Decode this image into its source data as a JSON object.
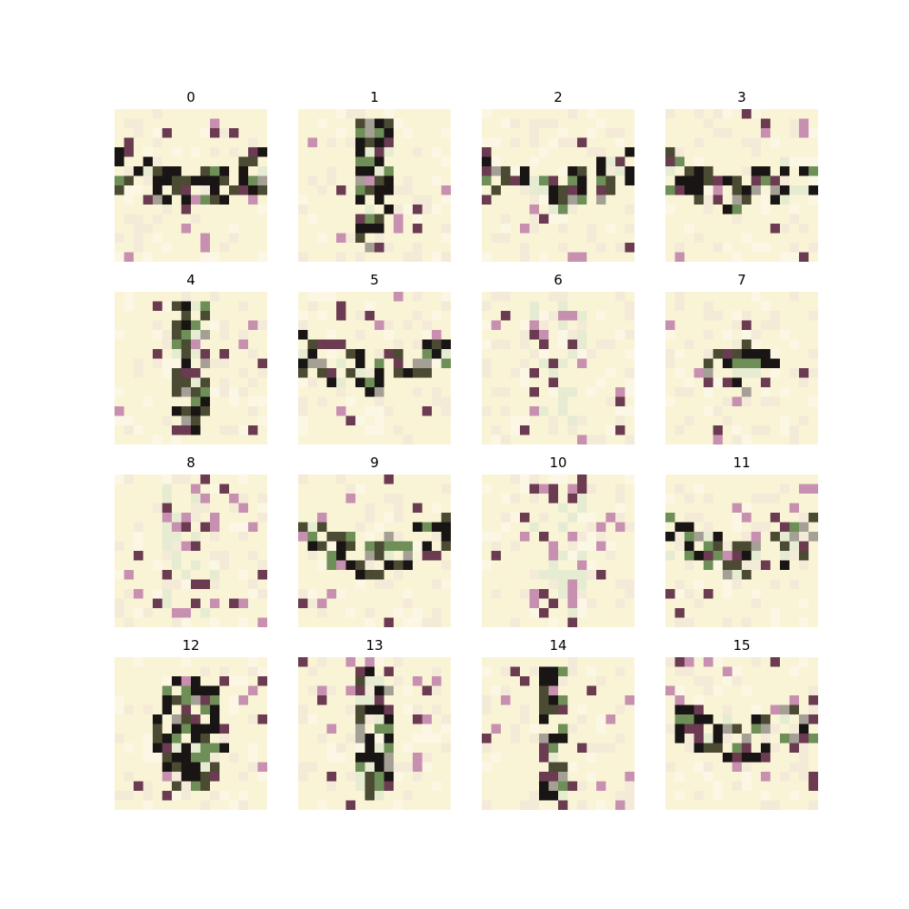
{
  "figure": {
    "titles": [
      "0",
      "1",
      "2",
      "3",
      "4",
      "5",
      "6",
      "7",
      "8",
      "9",
      "10",
      "11",
      "12",
      "13",
      "14",
      "15"
    ],
    "background": "#ffffff",
    "pixel_colors": {
      "paper": "#faf4d6",
      "dark": "#1a1515",
      "olive": "#4b4a32",
      "green": "#6e8f57",
      "plum": "#6b3b52",
      "pink": "#c890b0",
      "grey": "#a5a096",
      "light": "#e6ecd2"
    }
  }
}
